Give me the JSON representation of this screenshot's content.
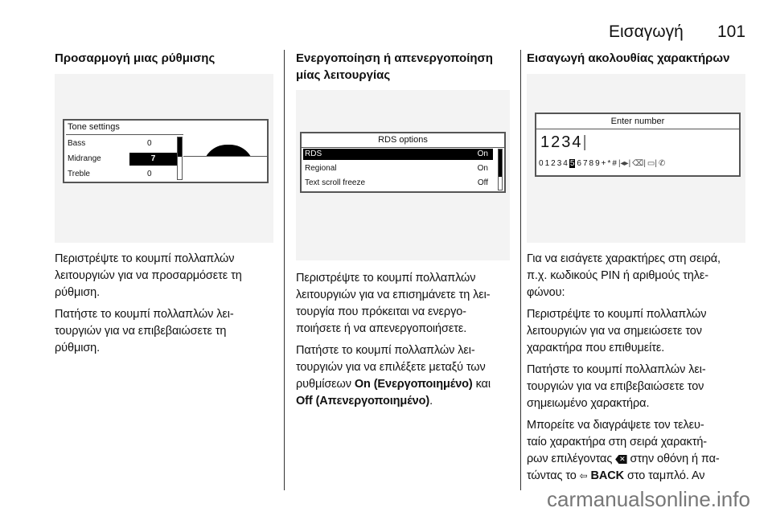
{
  "header": {
    "title": "Εισαγωγή",
    "page": "101"
  },
  "columns": [
    {
      "title": [
        "Προσαρμογή μιας ρύθμισης"
      ],
      "screen": {
        "title": "Tone settings",
        "rows": [
          {
            "label": "Bass",
            "value": "0"
          },
          {
            "label": "Midrange",
            "value": "7",
            "selected": true
          },
          {
            "label": "Treble",
            "value": "0"
          }
        ]
      },
      "paragraphs": [
        [
          "Περιστρέψτε το κουμπί πολλαπλών",
          "λειτουργιών για να προσαρμόσετε τη",
          "ρύθμιση."
        ],
        [
          "Πατήστε το κουμπί πολλαπλών λει-",
          "τουργιών για να επιβεβαιώσετε τη",
          "ρύθμιση."
        ]
      ]
    },
    {
      "title": [
        "Ενεργοποίηση ή απενεργοποίηση",
        "μίας λειτουργίας"
      ],
      "screen": {
        "title": "RDS options",
        "rows": [
          {
            "label": "RDS",
            "value": "On",
            "selected": true
          },
          {
            "label": "Regional",
            "value": "On"
          },
          {
            "label": "Text scroll freeze",
            "value": "Off"
          }
        ]
      },
      "paragraphs": [
        [
          "Περιστρέψτε το κουμπί πολλαπλών",
          "λειτουργιών για να επισημάνετε τη λει-",
          "τουργία που πρόκειται να ενεργο-",
          "ποιήσετε ή να απενεργοποιήσετε."
        ],
        [
          "Πατήστε το κουμπί πολλαπλών λει-",
          "τουργιών για να επιλέξετε μεταξύ των"
        ]
      ],
      "p2_tail": {
        "pre": "ρυθμίσεων ",
        "on": "On (Ενεργοποιημένο)",
        "mid": " και",
        "off": "Off (Απενεργοποιημένο)",
        "end": "."
      }
    },
    {
      "title": [
        "Εισαγωγή ακολουθίας χαρακτήρων"
      ],
      "screen": {
        "title": "Enter number",
        "entry": "1234",
        "chars": [
          "0",
          "1",
          "2",
          "3",
          "4",
          "5",
          "6",
          "7",
          "8",
          "9",
          "+",
          "*",
          "#"
        ],
        "selected_char": "5"
      },
      "paragraphs": [
        [
          "Για να εισάγετε χαρακτήρες στη σειρά,",
          "π.χ. κωδικούς PIN ή αριθμούς τηλε-",
          "φώνου:"
        ],
        [
          "Περιστρέψτε το κουμπί πολλαπλών",
          "λειτουργιών για να σημειώσετε τον",
          "χαρακτήρα που επιθυμείτε."
        ],
        [
          "Πατήστε το κουμπί πολλαπλών λει-",
          "τουργιών για να επιβεβαιώσετε τον",
          "σημειωμένο χαρακτήρα."
        ],
        [
          "Μπορείτε να διαγράψετε τον τελευ-",
          "ταίο χαρακτήρα στη σειρά χαρακτή-"
        ]
      ],
      "p4_tail": {
        "l3a": "ρων επιλέγοντας ",
        "l3b": " στην οθόνη ή πα-",
        "l4a": "τώντας το ",
        "back": "BACK",
        "l4b": " στο ταμπλό. Αν"
      }
    }
  ],
  "watermark": "carmanualsonline.info"
}
